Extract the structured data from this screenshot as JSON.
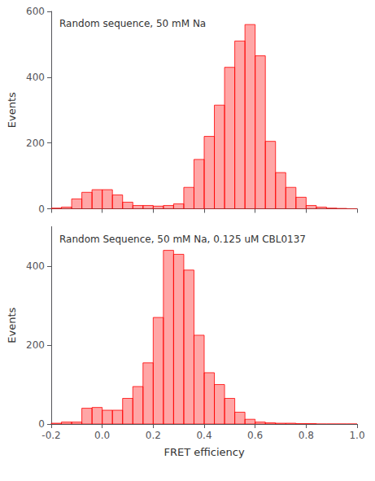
{
  "chart_data": [
    {
      "type": "histogram",
      "title": "Random sequence, 50 mM Na",
      "ylabel": "Events",
      "bins": [
        -0.2,
        -0.16,
        -0.12,
        -0.08,
        -0.04,
        0.0,
        0.04,
        0.08,
        0.12,
        0.16,
        0.2,
        0.24,
        0.28,
        0.32,
        0.36,
        0.4,
        0.44,
        0.48,
        0.52,
        0.56,
        0.6,
        0.64,
        0.68,
        0.72,
        0.76,
        0.8,
        0.84,
        0.88,
        0.92,
        0.96,
        1.0
      ],
      "values": [
        2,
        5,
        30,
        50,
        58,
        58,
        42,
        20,
        10,
        10,
        8,
        10,
        15,
        65,
        150,
        220,
        315,
        430,
        510,
        560,
        465,
        205,
        110,
        65,
        35,
        10,
        5,
        2,
        1,
        0
      ],
      "color": "#ff0000",
      "xlim": [
        -0.2,
        1.0
      ],
      "xticks": [
        -0.2,
        {
          "value": 0.0,
          "label": "0.0"
        },
        0.2,
        0.4,
        0.6,
        0.8,
        {
          "value": 1.0,
          "label": "1.0"
        }
      ],
      "ylim": [
        0,
        600
      ],
      "yticks": [
        0,
        200,
        400,
        600
      ],
      "grid": false,
      "tick_labels": "y"
    },
    {
      "type": "histogram",
      "title": "Random Sequence, 50 mM Na, 0.125 uM CBL0137",
      "xlabel": "FRET efficiency",
      "ylabel": "Events",
      "bins": [
        -0.2,
        -0.16,
        -0.12,
        -0.08,
        -0.04,
        0.0,
        0.04,
        0.08,
        0.12,
        0.16,
        0.2,
        0.24,
        0.28,
        0.32,
        0.36,
        0.4,
        0.44,
        0.48,
        0.52,
        0.56,
        0.6,
        0.64,
        0.68,
        0.72,
        0.76,
        0.8,
        0.84,
        0.88,
        0.92,
        0.96,
        1.0
      ],
      "values": [
        2,
        5,
        5,
        40,
        42,
        35,
        35,
        65,
        95,
        155,
        270,
        440,
        430,
        390,
        225,
        130,
        100,
        65,
        30,
        12,
        5,
        3,
        2,
        2,
        1,
        1,
        0,
        0,
        0,
        0
      ],
      "color": "#ff0000",
      "xlim": [
        -0.2,
        1.0
      ],
      "xticks": [
        -0.2,
        {
          "value": 0.0,
          "label": "0.0"
        },
        0.2,
        0.4,
        0.6,
        0.8,
        {
          "value": 1.0,
          "label": "1.0"
        }
      ],
      "ylim": [
        0,
        500
      ],
      "yticks": [
        0,
        200,
        400
      ],
      "grid": false
    }
  ]
}
